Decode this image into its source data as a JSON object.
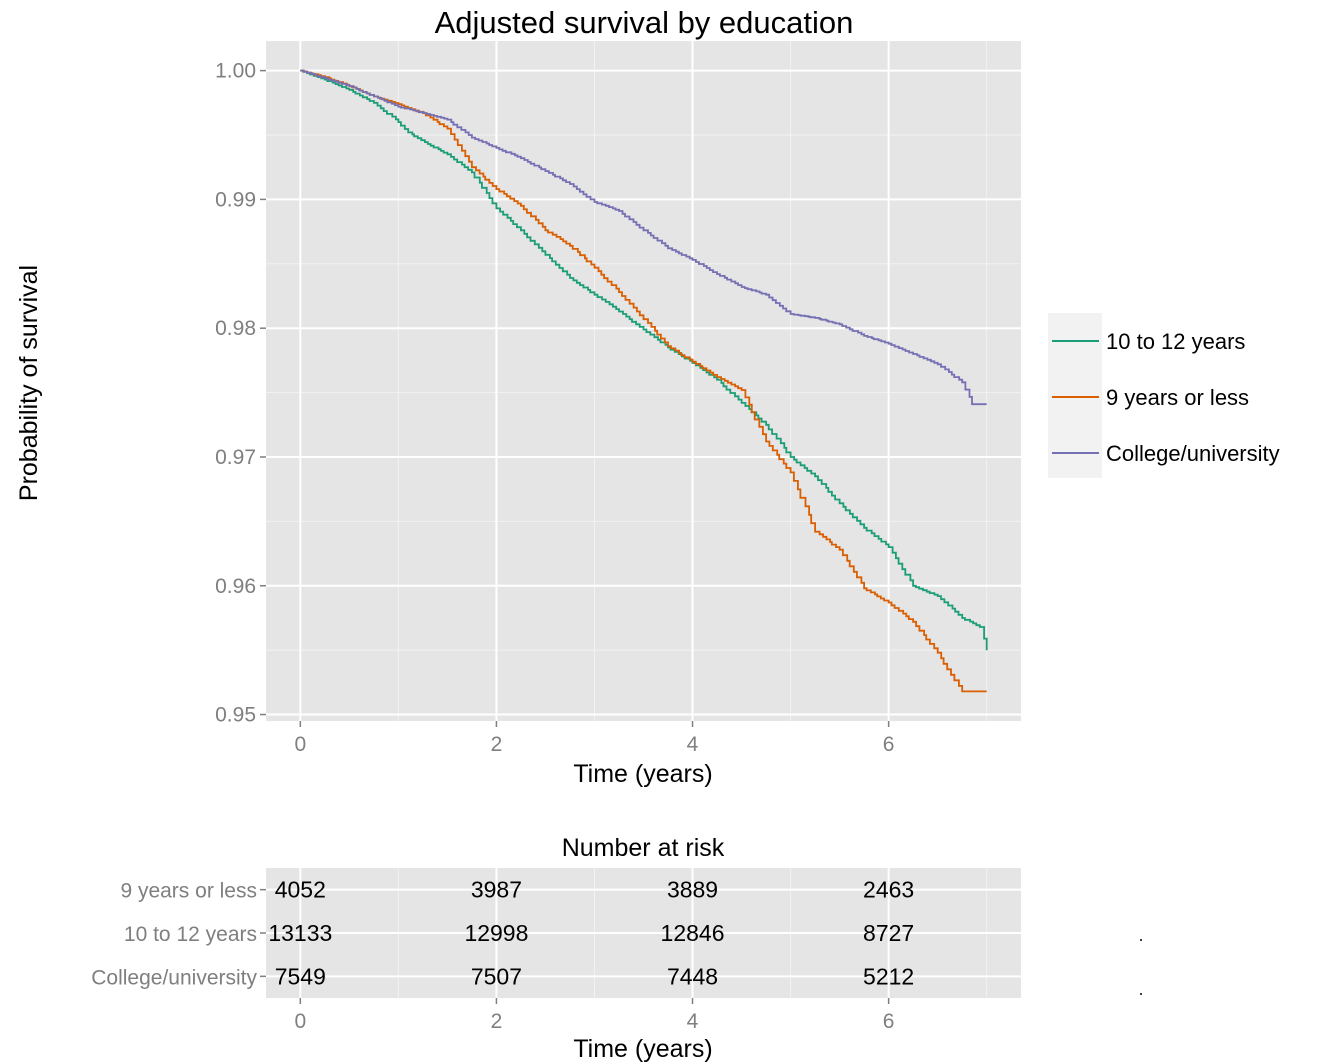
{
  "chart_data": [
    {
      "type": "line",
      "title": "Adjusted survival by education",
      "xlabel": "Time (years)",
      "ylabel": "Probability of survival",
      "xlim": [
        -0.35,
        7.35
      ],
      "ylim": [
        0.9495,
        1.0023
      ],
      "x_ticks": [
        0,
        2,
        4,
        6
      ],
      "x_tick_labels": [
        "0",
        "2",
        "4",
        "6"
      ],
      "y_ticks": [
        0.95,
        0.96,
        0.97,
        0.98,
        0.99,
        1.0
      ],
      "y_tick_labels": [
        "0.95",
        "0.96",
        "0.97",
        "0.98",
        "0.99",
        "1.00"
      ],
      "grid": true,
      "step": true,
      "legend_position": "right",
      "series": [
        {
          "name": "10 to 12 years",
          "color": "#1b9e77",
          "x": [
            0,
            0.25,
            0.5,
            0.75,
            1.0,
            1.1,
            1.3,
            1.5,
            1.75,
            2.0,
            2.25,
            2.5,
            2.75,
            3.0,
            3.25,
            3.5,
            3.75,
            4.0,
            4.25,
            4.5,
            4.75,
            5.0,
            5.25,
            5.5,
            5.75,
            6.0,
            6.25,
            6.5,
            6.75,
            6.93,
            7.0
          ],
          "y": [
            1.0,
            0.9993,
            0.9985,
            0.9975,
            0.996,
            0.9952,
            0.9943,
            0.9935,
            0.9921,
            0.9893,
            0.9876,
            0.9857,
            0.9839,
            0.9826,
            0.9813,
            0.9799,
            0.9785,
            0.9773,
            0.976,
            0.9742,
            0.9725,
            0.97,
            0.9685,
            0.9664,
            0.9645,
            0.963,
            0.96,
            0.9592,
            0.9575,
            0.9568,
            0.955
          ]
        },
        {
          "name": "9 years or less",
          "color": "#d95f02",
          "x": [
            0,
            0.25,
            0.5,
            0.75,
            1.0,
            1.25,
            1.5,
            1.75,
            2.0,
            2.25,
            2.5,
            2.75,
            3.0,
            3.25,
            3.5,
            3.75,
            4.0,
            4.25,
            4.5,
            4.75,
            5.0,
            5.25,
            5.5,
            5.75,
            6.0,
            6.25,
            6.5,
            6.75,
            7.0
          ],
          "y": [
            1.0,
            0.9995,
            0.9988,
            0.998,
            0.9974,
            0.9967,
            0.9955,
            0.9925,
            0.9908,
            0.9895,
            0.9876,
            0.9864,
            0.9847,
            0.9828,
            0.9807,
            0.9786,
            0.9774,
            0.9762,
            0.9752,
            0.9712,
            0.9688,
            0.9642,
            0.9628,
            0.9598,
            0.9587,
            0.9572,
            0.9548,
            0.9518,
            0.9518
          ]
        },
        {
          "name": "College/university",
          "color": "#7570b3",
          "x": [
            0,
            0.5,
            1.0,
            1.5,
            1.75,
            2.0,
            2.25,
            2.5,
            2.75,
            3.0,
            3.25,
            3.5,
            3.75,
            4.0,
            4.25,
            4.5,
            4.75,
            5.0,
            5.25,
            5.5,
            5.75,
            6.0,
            6.25,
            6.5,
            6.75,
            6.85,
            7.0
          ],
          "y": [
            1.0,
            0.9988,
            0.9972,
            0.9962,
            0.9948,
            0.994,
            0.9932,
            0.9922,
            0.9912,
            0.9898,
            0.9891,
            0.9876,
            0.9862,
            0.9853,
            0.9842,
            0.9832,
            0.9826,
            0.9811,
            0.9808,
            0.9803,
            0.9794,
            0.9788,
            0.978,
            0.9772,
            0.9758,
            0.9741,
            0.9741
          ]
        }
      ]
    },
    {
      "type": "table",
      "title": "Number at risk",
      "xlabel": "Time (years)",
      "x_ticks": [
        0,
        2,
        4,
        6
      ],
      "x_tick_labels": [
        "0",
        "2",
        "4",
        "6"
      ],
      "rows": [
        {
          "label": "9 years or less",
          "values": [
            "4052",
            "3987",
            "3889",
            "2463"
          ]
        },
        {
          "label": "10 to 12 years",
          "values": [
            "13133",
            "12998",
            "12846",
            "8727"
          ]
        },
        {
          "label": "College/university",
          "values": [
            "7549",
            "7507",
            "7448",
            "5212"
          ]
        }
      ]
    }
  ]
}
